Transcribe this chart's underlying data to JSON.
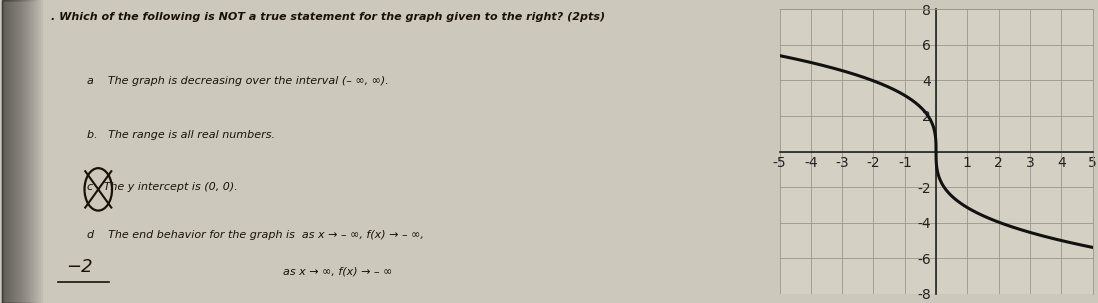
{
  "title_text": ". Which of the following is NOT a true statement for the graph given to the right? (2pts)",
  "opt_a": "a    The graph is decreasing over the interval (– ∞, ∞).",
  "opt_b": "b.   The range is all real numbers.",
  "opt_c_label": "c",
  "opt_c_text": "   The y intercept is (0, 0).",
  "opt_d": "d    The end behavior for the graph is  as x → – ∞, f(x) → – ∞,",
  "opt_d2": "                                                        as x → ∞, f(x) → – ∞",
  "answer_label": "−2",
  "bg_left_color": "#7a7060",
  "bg_paper_color": "#ccc8bc",
  "graph_bg_color": "#d4d0c4",
  "text_color": "#1a1208",
  "curve_color": "#111111",
  "grid_color": "#999888",
  "axis_color": "#222222",
  "graph_xlim": [
    -5,
    5
  ],
  "graph_ylim": [
    -8,
    8
  ],
  "graph_xticks": [
    -5,
    -4,
    -3,
    -2,
    -1,
    0,
    1,
    2,
    3,
    4,
    5
  ],
  "graph_yticks": [
    -8,
    -6,
    -4,
    -2,
    0,
    2,
    4,
    6,
    8
  ],
  "title_fontsize": 8.0,
  "option_fontsize": 8.0,
  "answer_fontsize": 13
}
